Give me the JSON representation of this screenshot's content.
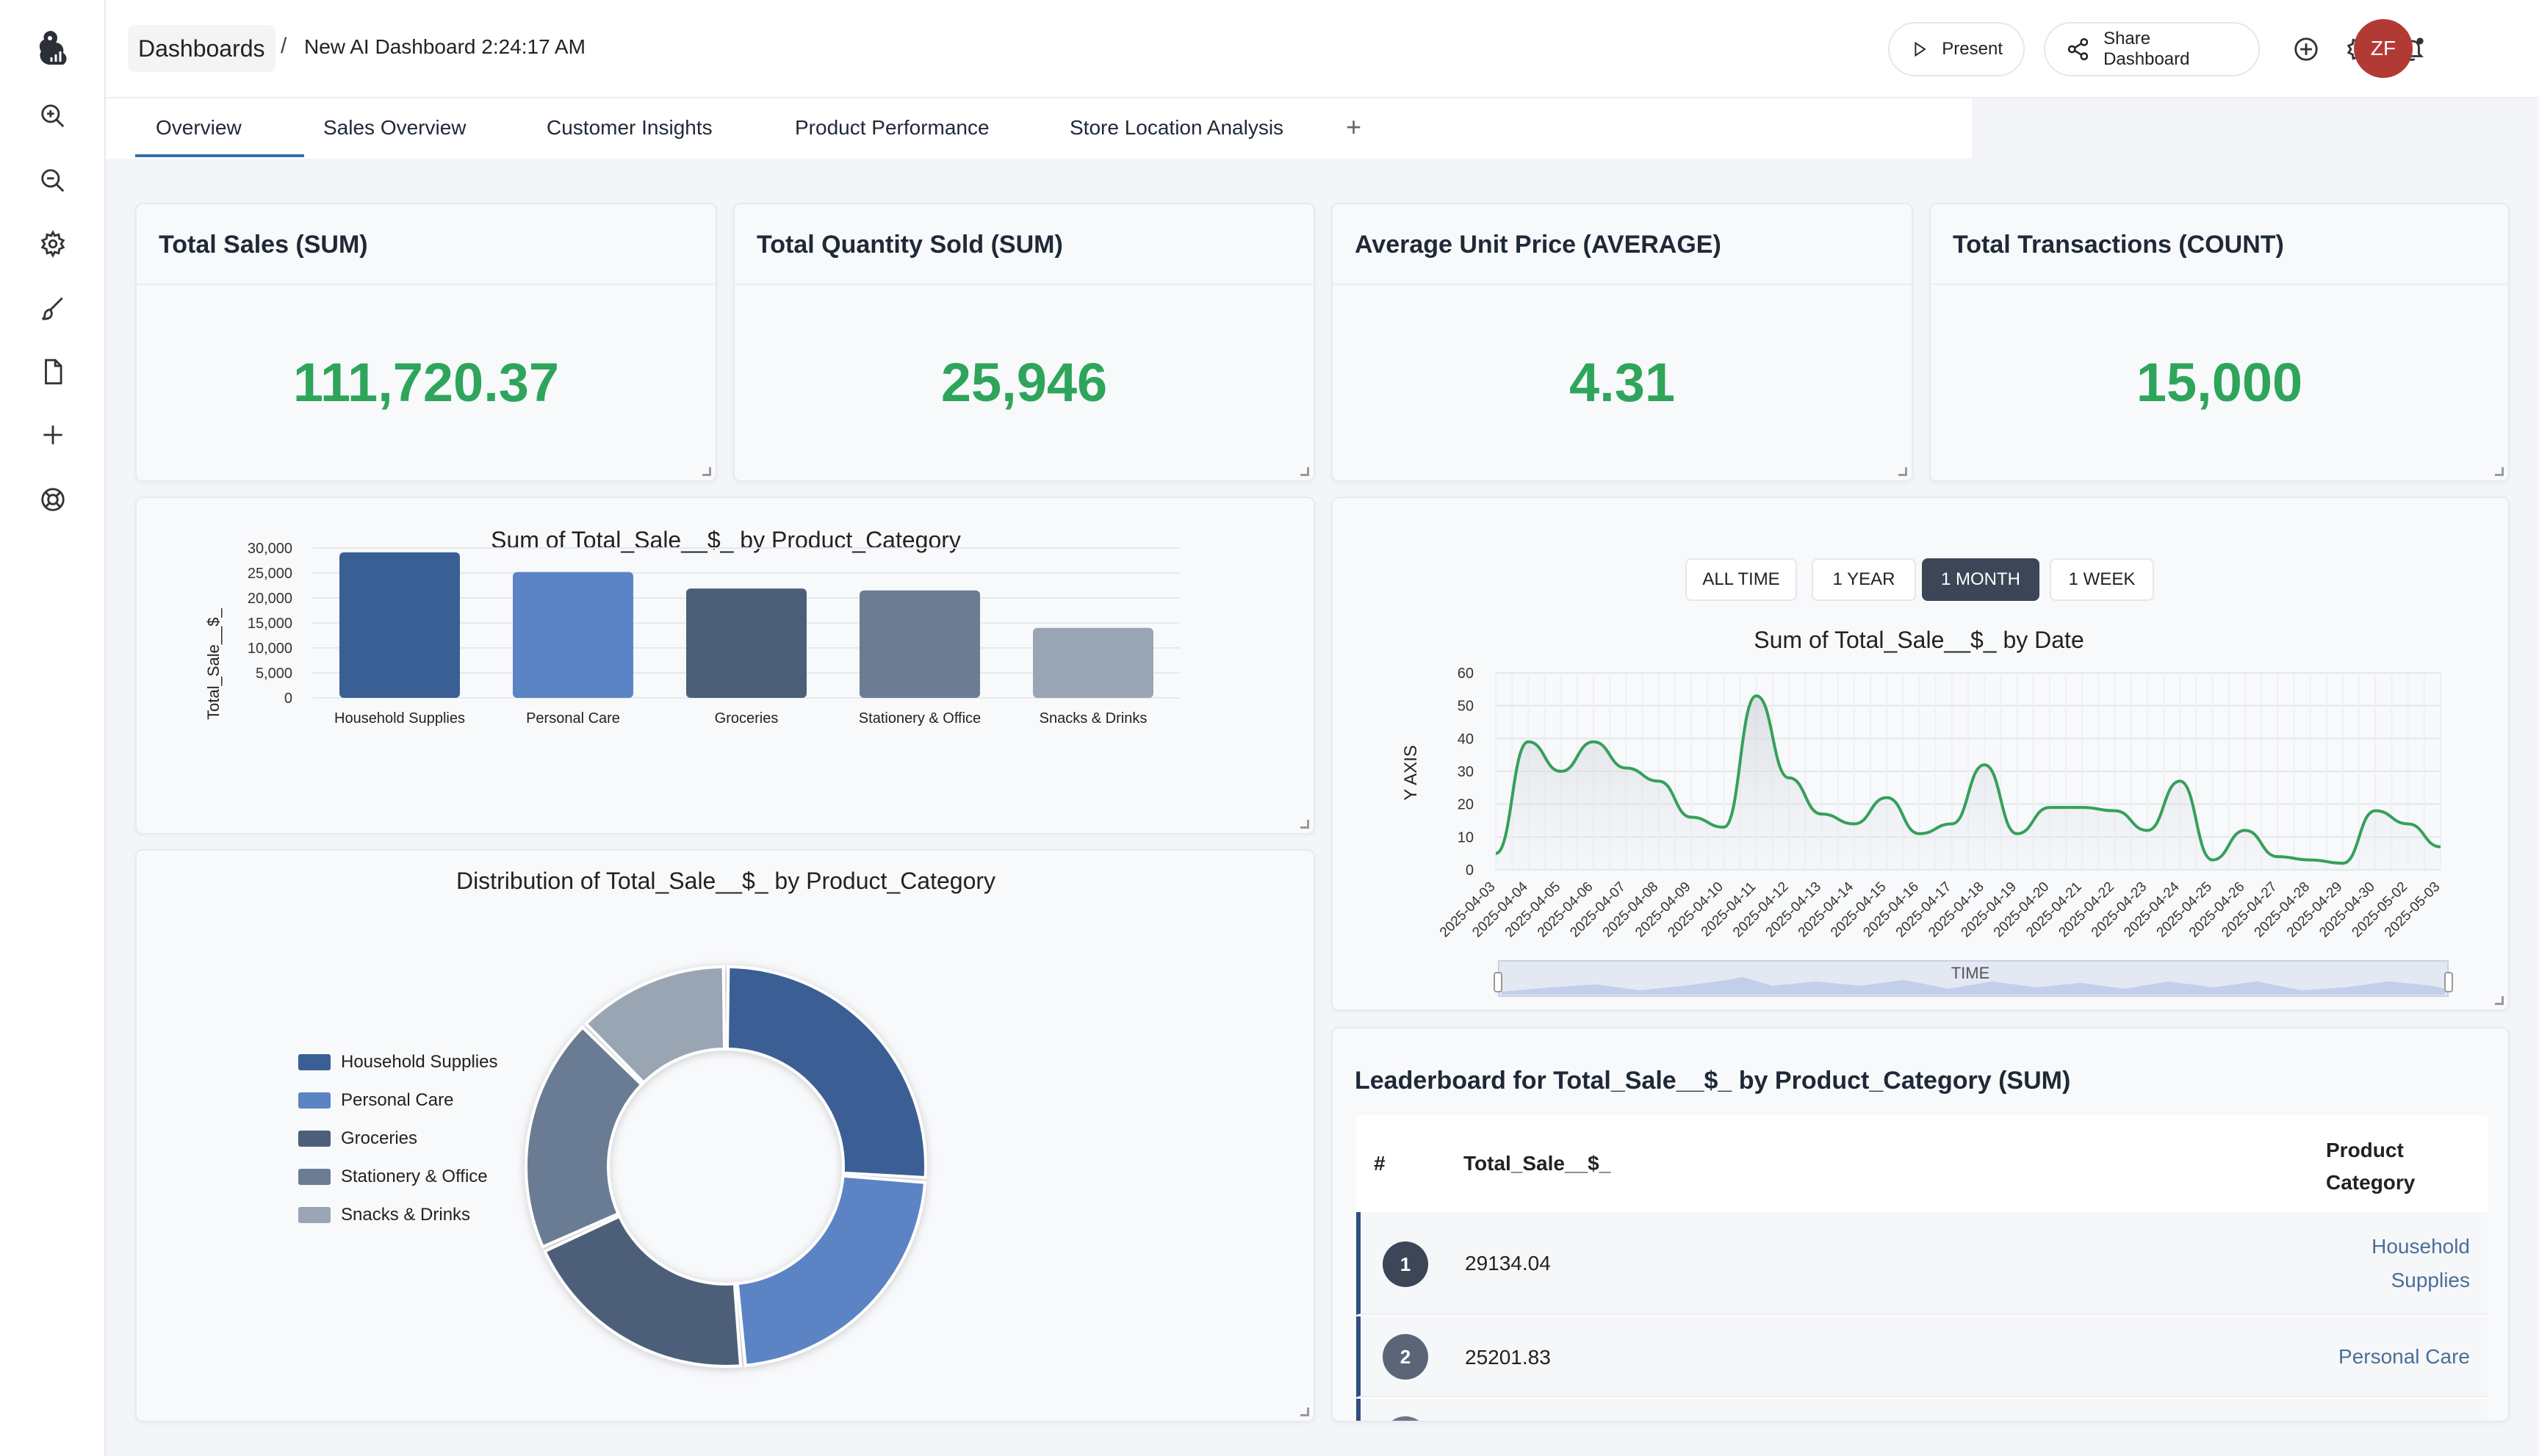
{
  "breadcrumb": {
    "root": "Dashboards",
    "separator": "/",
    "title": "New AI Dashboard 2:24:17 AM"
  },
  "header": {
    "present_label": "Present",
    "share_label": "Share Dashboard",
    "avatar_initials": "ZF"
  },
  "tabs": [
    "Overview",
    "Sales Overview",
    "Customer Insights",
    "Product Performance",
    "Store Location Analysis"
  ],
  "kpis": [
    {
      "title": "Total Sales (SUM)",
      "value": "111,720.37"
    },
    {
      "title": "Total Quantity Sold (SUM)",
      "value": "25,946"
    },
    {
      "title": "Average Unit Price (AVERAGE)",
      "value": "4.31"
    },
    {
      "title": "Total Transactions (COUNT)",
      "value": "15,000"
    }
  ],
  "range_buttons": [
    "ALL TIME",
    "1 YEAR",
    "1 MONTH",
    "1 WEEK"
  ],
  "range_active": "1 MONTH",
  "colors": {
    "accent_green": "#2ea55b",
    "household": "#3a5f94",
    "personal": "#5b84c4",
    "groceries": "#4d5f78",
    "stationery": "#6b7c93",
    "snacks": "#9aa5b4",
    "line": "#35a05a"
  },
  "chart_data": [
    {
      "type": "bar",
      "title": "Sum of Total_Sale__$_ by Product_Category",
      "ylabel": "Total_Sale__$_",
      "xlabel": "",
      "categories": [
        "Household Supplies",
        "Personal Care",
        "Groceries",
        "Stationery & Office",
        "Snacks & Drinks"
      ],
      "values": [
        29134.04,
        25201.83,
        21900,
        21500,
        14000
      ],
      "ylim": [
        0,
        30000
      ],
      "yticks": [
        "0",
        "5,000",
        "10,000",
        "15,000",
        "20,000",
        "25,000",
        "30,000"
      ]
    },
    {
      "type": "pie",
      "title": "Distribution of Total_Sale__$_ by Product_Category",
      "categories": [
        "Household Supplies",
        "Personal Care",
        "Groceries",
        "Stationery & Office",
        "Snacks & Drinks"
      ],
      "values": [
        29134.04,
        25201.83,
        21900,
        21500,
        14000
      ]
    },
    {
      "type": "line",
      "title": "Sum of Total_Sale__$_ by Date",
      "xlabel": "TIME",
      "ylabel": "Y AXIS",
      "ylim": [
        0,
        60
      ],
      "yticks": [
        "0",
        "10",
        "20",
        "30",
        "40",
        "50",
        "60"
      ],
      "x": [
        "2025-04-03",
        "2025-04-04",
        "2025-04-05",
        "2025-04-06",
        "2025-04-07",
        "2025-04-08",
        "2025-04-09",
        "2025-04-10",
        "2025-04-11",
        "2025-04-12",
        "2025-04-13",
        "2025-04-14",
        "2025-04-15",
        "2025-04-16",
        "2025-04-17",
        "2025-04-18",
        "2025-04-19",
        "2025-04-20",
        "2025-04-21",
        "2025-04-22",
        "2025-04-23",
        "2025-04-24",
        "2025-04-25",
        "2025-04-26",
        "2025-04-27",
        "2025-04-28",
        "2025-04-29",
        "2025-04-30",
        "2025-05-02",
        "2025-05-03"
      ],
      "values": [
        5,
        39,
        30,
        39,
        31,
        27,
        16,
        13,
        53,
        28,
        17,
        14,
        22,
        11,
        14,
        32,
        11,
        19,
        19,
        18,
        12,
        27,
        3,
        12,
        4,
        3,
        2,
        18,
        14,
        7
      ]
    }
  ],
  "leaderboard": {
    "title": "Leaderboard for Total_Sale__$_ by Product_Category (SUM)",
    "headers": {
      "rank": "#",
      "value": "Total_Sale__$_",
      "category_line1": "Product",
      "category_line2": "Category"
    },
    "rows": [
      {
        "rank": "1",
        "value": "29134.04",
        "category_line1": "Household",
        "category_line2": "Supplies"
      },
      {
        "rank": "2",
        "value": "25201.83",
        "category": "Personal Care"
      }
    ]
  }
}
